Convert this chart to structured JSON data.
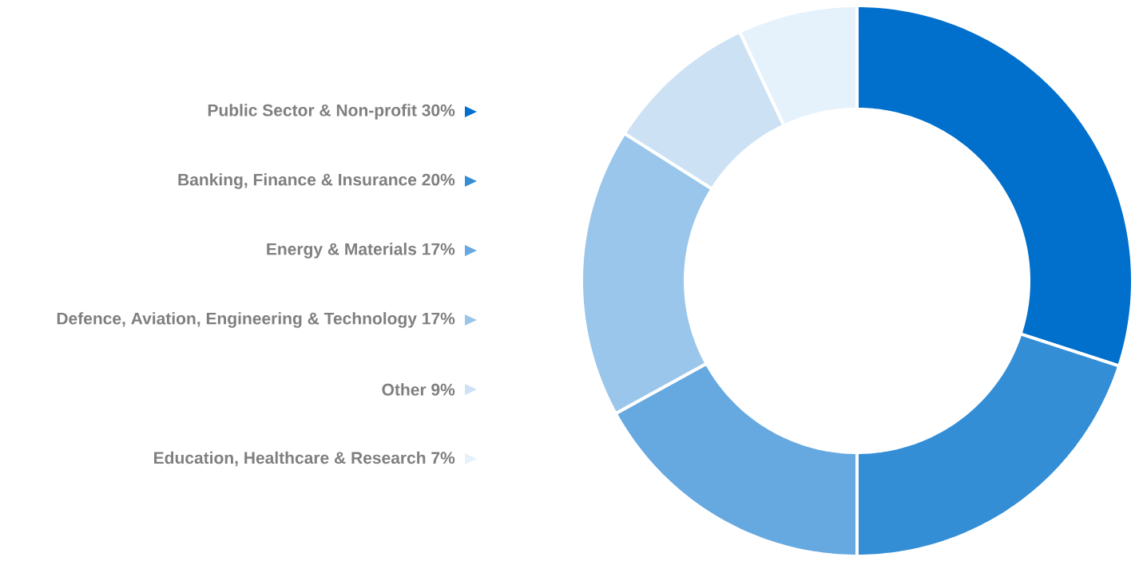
{
  "chart_data": {
    "type": "donut",
    "categories": [
      "Public Sector & Non-profit 30%",
      "Banking, Finance & Insurance 20%",
      "Energy & Materials 17%",
      "Defence, Aviation, Engineering & Technology 17%",
      "Other 9%",
      "Education, Healthcare & Research 7%"
    ],
    "values": [
      30,
      20,
      17,
      17,
      9,
      7
    ],
    "colors": [
      "#0070cc",
      "#338ed6",
      "#66a9e0",
      "#99c6ea",
      "#cce2f4",
      "#e5f1fb"
    ],
    "legend": "left"
  }
}
